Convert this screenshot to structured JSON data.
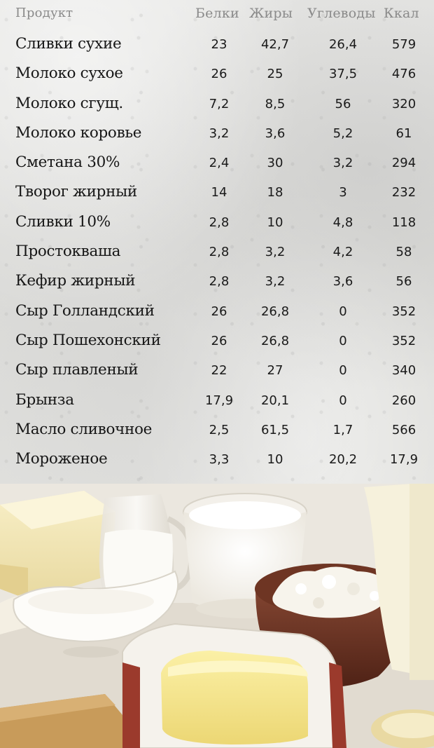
{
  "table": {
    "headers": {
      "product": "Продукт",
      "protein": "Белки",
      "fat": "Жиры",
      "carbs": "Углеводы",
      "kcal": "Ккал"
    },
    "rows": [
      {
        "name": "Сливки сухие",
        "protein": "23",
        "fat": "42,7",
        "carbs": "26,4",
        "kcal": "579"
      },
      {
        "name": "Молоко сухое",
        "protein": "26",
        "fat": "25",
        "carbs": "37,5",
        "kcal": "476"
      },
      {
        "name": "Молоко сгущ.",
        "protein": "7,2",
        "fat": "8,5",
        "carbs": "56",
        "kcal": "320"
      },
      {
        "name": "Молоко коровье",
        "protein": "3,2",
        "fat": "3,6",
        "carbs": "5,2",
        "kcal": "61"
      },
      {
        "name": "Сметана 30%",
        "protein": "2,4",
        "fat": "30",
        "carbs": "3,2",
        "kcal": "294"
      },
      {
        "name": "Творог жирный",
        "protein": "14",
        "fat": "18",
        "carbs": "3",
        "kcal": "232"
      },
      {
        "name": "Сливки 10%",
        "protein": "2,8",
        "fat": "10",
        "carbs": "4,8",
        "kcal": "118"
      },
      {
        "name": "Простокваша",
        "protein": "2,8",
        "fat": "3,2",
        "carbs": "4,2",
        "kcal": "58"
      },
      {
        "name": "Кефир жирный",
        "protein": "2,8",
        "fat": "3,2",
        "carbs": "3,6",
        "kcal": "56"
      },
      {
        "name": "Сыр Голландский",
        "protein": "26",
        "fat": "26,8",
        "carbs": "0",
        "kcal": "352"
      },
      {
        "name": "Сыр Пошехонский",
        "protein": "26",
        "fat": "26,8",
        "carbs": "0",
        "kcal": "352"
      },
      {
        "name": "Сыр плавленый",
        "protein": "22",
        "fat": "27",
        "carbs": "0",
        "kcal": "340"
      },
      {
        "name": "Брынза",
        "protein": "17,9",
        "fat": "20,1",
        "carbs": "0",
        "kcal": "260"
      },
      {
        "name": "Масло сливочное",
        "protein": "2,5",
        "fat": "61,5",
        "carbs": "1,7",
        "kcal": "566"
      },
      {
        "name": "Мороженое",
        "protein": "3,3",
        "fat": "10",
        "carbs": "20,2",
        "kcal": "17,9"
      }
    ]
  },
  "photo": {
    "icon": "dairy-products-photo"
  }
}
